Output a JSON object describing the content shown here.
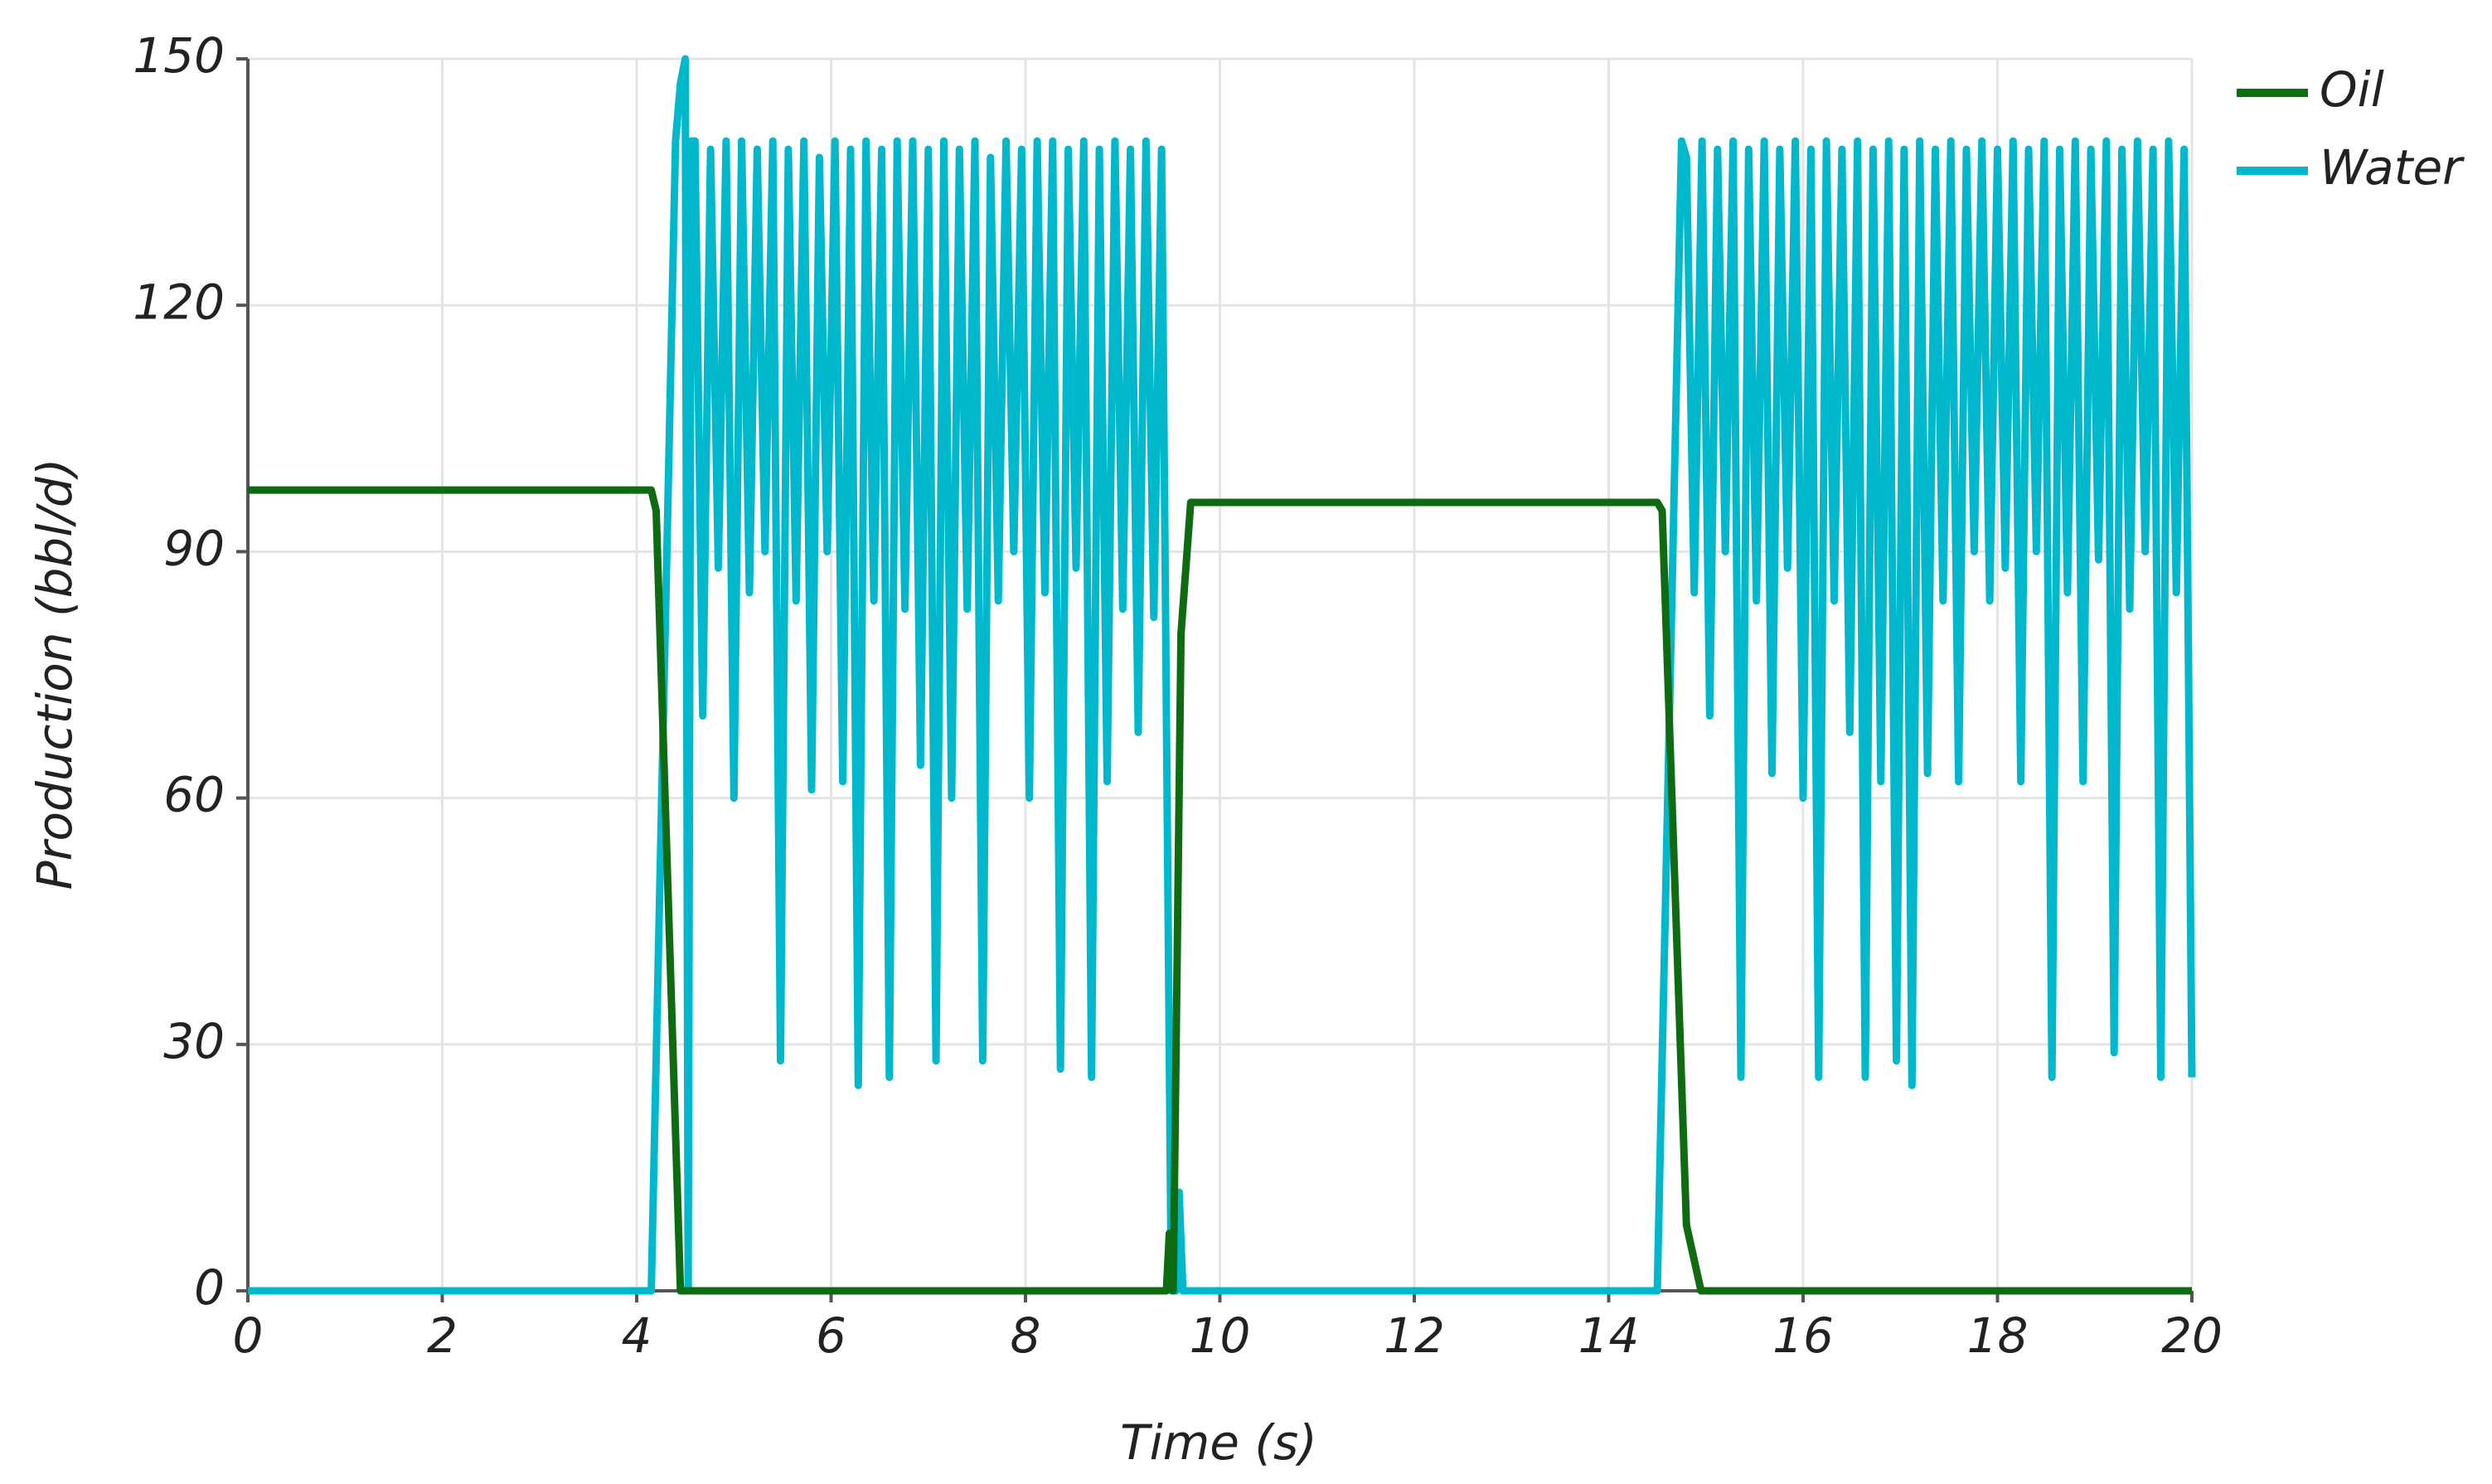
{
  "chart_data": {
    "type": "line",
    "x_label": "Time (s)",
    "y_label": "Production (bbl/d)",
    "xlim": [
      0,
      20
    ],
    "xticks": [
      0,
      2,
      4,
      6,
      8,
      10,
      12,
      14,
      16,
      18,
      20
    ],
    "ylim": [
      0,
      150
    ],
    "yticks": [
      0,
      30,
      60,
      90,
      120,
      150
    ],
    "grid": true,
    "legend": "top-right",
    "series": [
      {
        "name": "Oil",
        "color": "#0f6b12",
        "x": [
          0,
          4.15,
          4.2,
          4.45,
          9.45,
          9.48,
          9.52,
          9.6,
          9.7,
          14.5,
          14.55,
          14.8,
          14.95,
          20
        ],
        "values": [
          97.5,
          97.5,
          95,
          0,
          0,
          7,
          0,
          80,
          96,
          96,
          95,
          8,
          0,
          0
        ]
      },
      {
        "name": "Water",
        "color": "#00b8cc",
        "x": [
          0,
          4.15,
          4.4,
          4.45,
          4.5,
          4.53,
          4.56,
          4.6,
          4.68,
          4.76,
          4.84,
          4.92,
          5,
          5.08,
          5.16,
          5.24,
          5.32,
          5.4,
          5.48,
          5.56,
          5.64,
          5.72,
          5.8,
          5.88,
          5.96,
          6.04,
          6.12,
          6.2,
          6.28,
          6.36,
          6.44,
          6.52,
          6.6,
          6.68,
          6.76,
          6.84,
          6.92,
          7,
          7.08,
          7.16,
          7.24,
          7.32,
          7.4,
          7.48,
          7.56,
          7.64,
          7.72,
          7.8,
          7.88,
          7.96,
          8.04,
          8.12,
          8.2,
          8.28,
          8.36,
          8.44,
          8.52,
          8.6,
          8.68,
          8.76,
          8.84,
          8.92,
          9,
          9.08,
          9.16,
          9.24,
          9.32,
          9.4,
          9.5,
          9.55,
          9.58,
          9.62,
          14.5,
          14.75,
          14.8,
          14.88,
          14.96,
          15.04,
          15.12,
          15.2,
          15.28,
          15.36,
          15.44,
          15.52,
          15.6,
          15.68,
          15.76,
          15.84,
          15.92,
          16,
          16.08,
          16.16,
          16.24,
          16.32,
          16.4,
          16.48,
          16.56,
          16.64,
          16.72,
          16.8,
          16.88,
          16.96,
          17.04,
          17.12,
          17.2,
          17.28,
          17.36,
          17.44,
          17.52,
          17.6,
          17.68,
          17.76,
          17.84,
          17.92,
          18,
          18.08,
          18.16,
          18.24,
          18.32,
          18.4,
          18.48,
          18.56,
          18.64,
          18.72,
          18.8,
          18.88,
          18.96,
          19.04,
          19.12,
          19.2,
          19.28,
          19.36,
          19.44,
          19.52,
          19.6,
          19.68,
          19.76,
          19.84,
          19.92,
          20
        ],
        "values": [
          0,
          0,
          140,
          147,
          150,
          0,
          140,
          140,
          70,
          139,
          88,
          140,
          60,
          140,
          85,
          139,
          90,
          140,
          28,
          139,
          84,
          140,
          61,
          138,
          90,
          140,
          62,
          139,
          25,
          140,
          84,
          139,
          26,
          140,
          83,
          140,
          64,
          139,
          28,
          140,
          60,
          139,
          83,
          140,
          28,
          138,
          84,
          140,
          90,
          139,
          60,
          140,
          85,
          140,
          27,
          139,
          88,
          140,
          26,
          139,
          62,
          140,
          83,
          139,
          68,
          140,
          82,
          139,
          0,
          0,
          12,
          0,
          0,
          140,
          138,
          85,
          140,
          70,
          139,
          90,
          140,
          26,
          139,
          84,
          140,
          63,
          139,
          88,
          140,
          60,
          139,
          26,
          140,
          84,
          139,
          68,
          140,
          26,
          139,
          62,
          140,
          28,
          139,
          25,
          140,
          63,
          139,
          84,
          140,
          62,
          139,
          90,
          140,
          84,
          139,
          88,
          140,
          62,
          139,
          90,
          140,
          26,
          139,
          85,
          140,
          62,
          139,
          89,
          140,
          29,
          139,
          83,
          140,
          90,
          139,
          26,
          140,
          85,
          139,
          26
        ]
      }
    ]
  }
}
